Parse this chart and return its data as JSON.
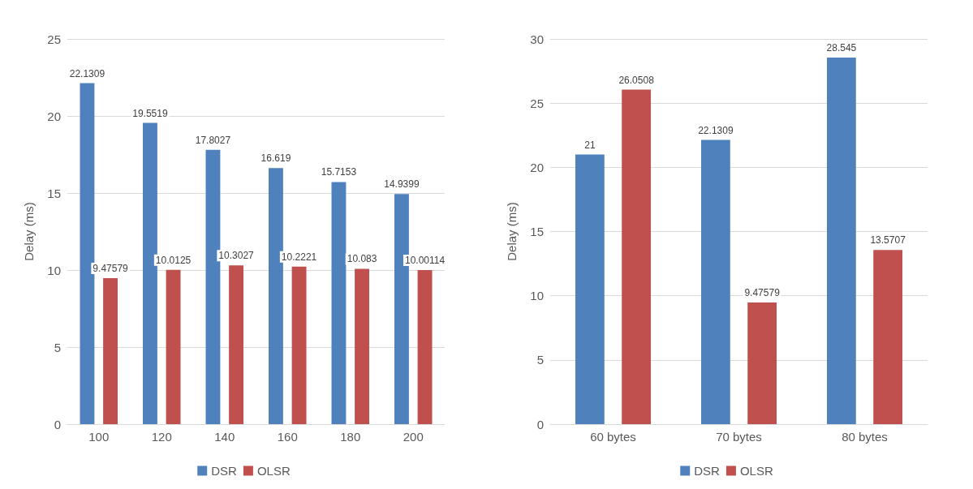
{
  "chart_data": [
    {
      "type": "bar",
      "ylabel": "Delay (ms)",
      "categories": [
        "100",
        "120",
        "140",
        "160",
        "180",
        "200"
      ],
      "series": [
        {
          "name": "DSR",
          "color": "#4f81bd",
          "values": [
            22.1309,
            19.5519,
            17.8027,
            16.619,
            15.7153,
            14.9399
          ]
        },
        {
          "name": "OLSR",
          "color": "#c0504d",
          "values": [
            9.47579,
            10.0125,
            10.3027,
            10.2221,
            10.083,
            10.00114
          ]
        }
      ],
      "ylim": [
        0,
        25
      ],
      "yticks": [
        0,
        5,
        10,
        15,
        20,
        25
      ],
      "grid": "y",
      "legend": "bottom",
      "data_labels": true
    },
    {
      "type": "bar",
      "ylabel": "Delay (ms)",
      "categories": [
        "60 bytes",
        "70 bytes",
        "80 bytes"
      ],
      "series": [
        {
          "name": "DSR",
          "color": "#4f81bd",
          "values": [
            21,
            22.1309,
            28.545
          ]
        },
        {
          "name": "OLSR",
          "color": "#c0504d",
          "values": [
            26.0508,
            9.47579,
            13.5707
          ]
        }
      ],
      "ylim": [
        0,
        30
      ],
      "yticks": [
        0,
        5,
        10,
        15,
        20,
        25,
        30
      ],
      "grid": "y",
      "legend": "bottom",
      "data_labels": true
    }
  ]
}
